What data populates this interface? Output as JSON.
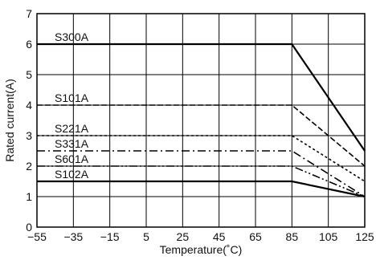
{
  "chart_data": {
    "type": "line",
    "xlabel": "Temperature(˚C)",
    "ylabel": "Rated current(A)",
    "xlim": [
      -55,
      125
    ],
    "ylim": [
      0,
      7
    ],
    "x_ticks": [
      -55,
      -35,
      -15,
      5,
      25,
      45,
      65,
      85,
      105,
      125
    ],
    "y_ticks": [
      0,
      1,
      2,
      3,
      4,
      5,
      6,
      7
    ],
    "x_tick_labels": [
      "−55",
      "−35",
      "−15",
      "5",
      "25",
      "45",
      "65",
      "85",
      "105",
      "125"
    ],
    "y_tick_labels": [
      "0",
      "1",
      "2",
      "3",
      "4",
      "5",
      "6",
      "7"
    ],
    "grid": true,
    "series": [
      {
        "name": "S300A",
        "style": "solid",
        "x": [
          -55,
          85,
          125
        ],
        "y": [
          6,
          6,
          2.5
        ]
      },
      {
        "name": "S101A",
        "style": "dashed",
        "x": [
          -55,
          85,
          125
        ],
        "y": [
          4,
          4,
          2
        ]
      },
      {
        "name": "S221A",
        "style": "dotted",
        "x": [
          -55,
          85,
          125
        ],
        "y": [
          3,
          3,
          1.5
        ]
      },
      {
        "name": "S331A",
        "style": "dash-dot",
        "x": [
          -55,
          85,
          125
        ],
        "y": [
          2.5,
          2.5,
          1
        ]
      },
      {
        "name": "S601A",
        "style": "dash-dot-dot",
        "x": [
          -55,
          85,
          125
        ],
        "y": [
          2,
          2,
          1
        ]
      },
      {
        "name": "S102A",
        "style": "solid",
        "x": [
          -55,
          85,
          125
        ],
        "y": [
          1.5,
          1.5,
          1
        ]
      }
    ]
  }
}
